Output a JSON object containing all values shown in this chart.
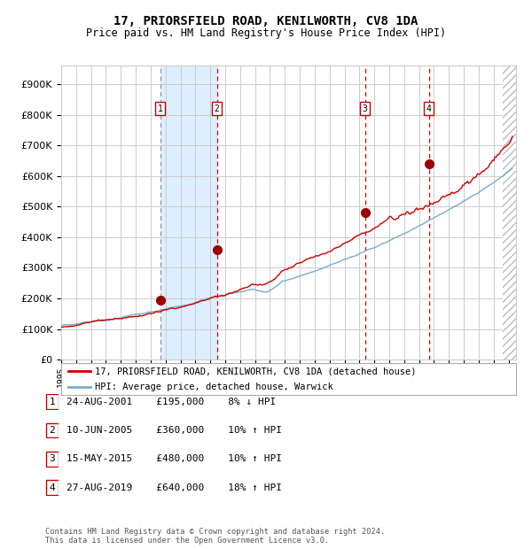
{
  "title1": "17, PRIORSFIELD ROAD, KENILWORTH, CV8 1DA",
  "title2": "Price paid vs. HM Land Registry's House Price Index (HPI)",
  "ytick_values": [
    0,
    100000,
    200000,
    300000,
    400000,
    500000,
    600000,
    700000,
    800000,
    900000
  ],
  "ylim": [
    0,
    960000
  ],
  "xlim_start": 1995.0,
  "xlim_end": 2025.5,
  "sale_dates": [
    2001.65,
    2005.44,
    2015.37,
    2019.65
  ],
  "sale_prices": [
    195000,
    360000,
    480000,
    640000
  ],
  "sale_labels": [
    "1",
    "2",
    "3",
    "4"
  ],
  "sale_hpi_pct": [
    "8% ↓ HPI",
    "10% ↑ HPI",
    "10% ↑ HPI",
    "18% ↑ HPI"
  ],
  "sale_date_labels": [
    "24-AUG-2001",
    "10-JUN-2005",
    "15-MAY-2015",
    "27-AUG-2019"
  ],
  "sale_price_labels": [
    "£195,000",
    "£360,000",
    "£480,000",
    "£640,000"
  ],
  "legend_line1": "17, PRIORSFIELD ROAD, KENILWORTH, CV8 1DA (detached house)",
  "legend_line2": "HPI: Average price, detached house, Warwick",
  "footer1": "Contains HM Land Registry data © Crown copyright and database right 2024.",
  "footer2": "This data is licensed under the Open Government Licence v3.0.",
  "red_line_color": "#cc0000",
  "blue_line_color": "#7aabcd",
  "bg_color": "#ffffff",
  "grid_color": "#cccccc",
  "shade_color": "#ddeeff",
  "vline_gray_color": "#999999",
  "vline_red_color": "#cc0000",
  "marker_color": "#990000",
  "box_edge_color": "#cc0000",
  "hatch_end": 2024.6
}
